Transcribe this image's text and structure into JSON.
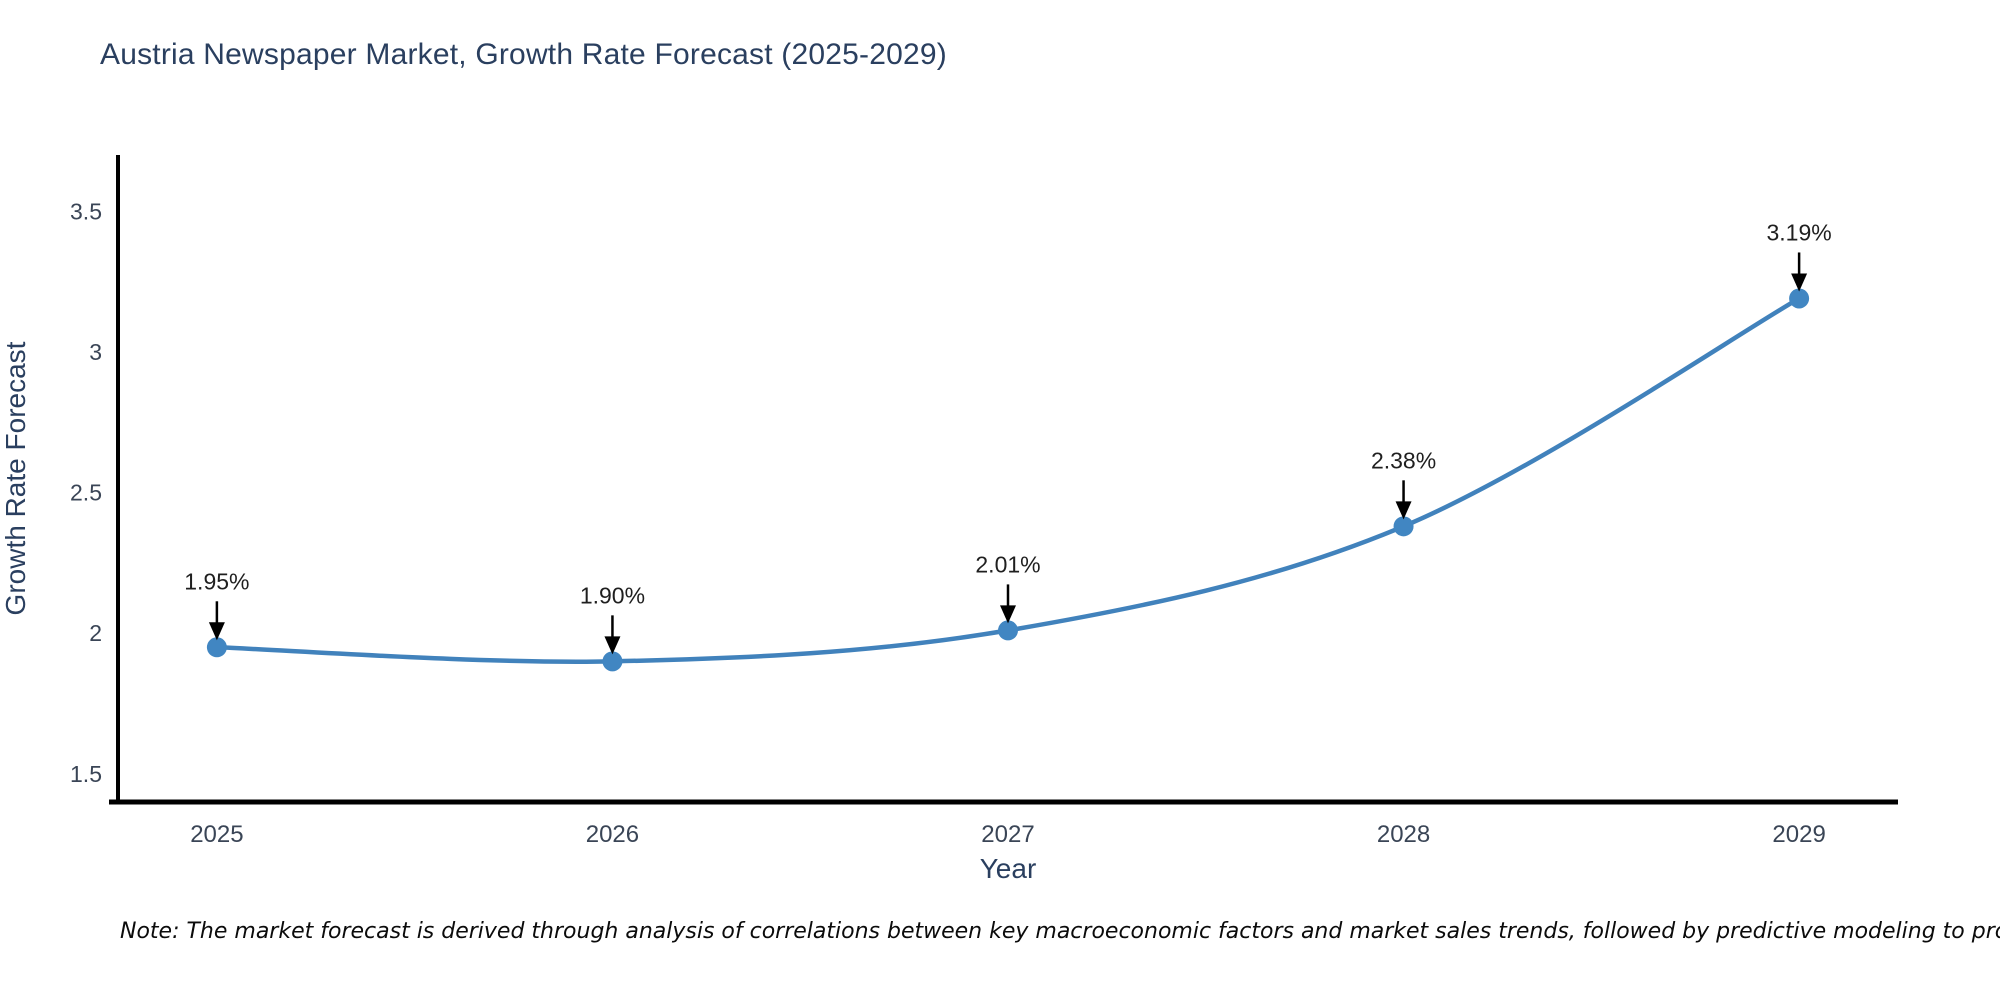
{
  "figure": {
    "title": "Austria Newspaper Market, Growth Rate Forecast (2025-2029)",
    "note": "Note: The market forecast is derived through analysis of correlations between key macroeconomic factors and market sales trends, followed by predictive modeling to project future sales"
  },
  "chart_data": {
    "type": "line",
    "title": "Austria Newspaper Market, Growth Rate Forecast (2025-2029)",
    "xlabel": "Year",
    "ylabel": "Growth Rate Forecast",
    "x": [
      2025,
      2026,
      2027,
      2028,
      2029
    ],
    "values": [
      1.95,
      1.9,
      2.01,
      2.38,
      3.19
    ],
    "point_labels": [
      "1.95%",
      "1.90%",
      "2.01%",
      "2.38%",
      "3.19%"
    ],
    "xtick_labels": [
      "2025",
      "2026",
      "2027",
      "2028",
      "2029"
    ],
    "ytick_values": [
      1.5,
      2,
      2.5,
      3,
      3.5
    ],
    "ytick_labels": [
      "1.5",
      "2",
      "2.5",
      "3",
      "3.5"
    ],
    "xlim": [
      2024.75,
      2029.25
    ],
    "ylim": [
      1.4,
      3.7
    ],
    "grid": false,
    "legend": "none",
    "curve": "spline",
    "line_color": "#4182bc",
    "marker_color": "#4186c2",
    "axis_color": "#000000",
    "label_color": "#2a3f5f",
    "tick_color": "#3a4556",
    "annotation_color": "#1f1f1f",
    "arrow_color": "#000000"
  }
}
